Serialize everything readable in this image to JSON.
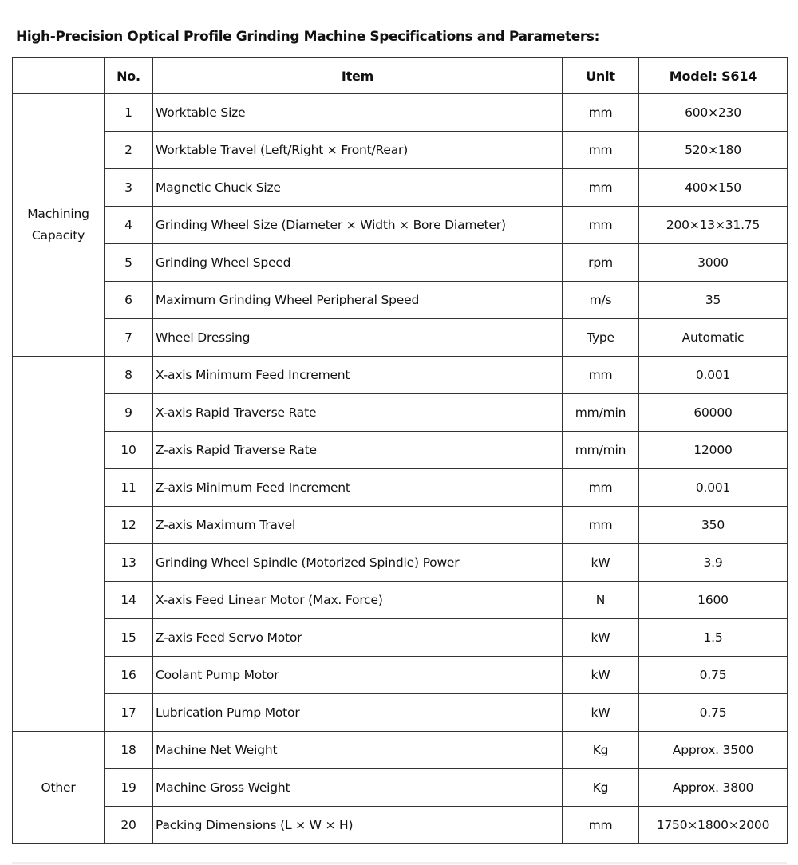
{
  "title": "High-Precision Optical Profile Grinding Machine Specifications and Parameters:",
  "headers": {
    "group": "",
    "no": "No.",
    "item": "Item",
    "unit": "Unit",
    "model": "Model: S614"
  },
  "groups": [
    {
      "label": "Machining Capacity",
      "rows": [
        {
          "no": "1",
          "item": "Worktable Size",
          "unit": "mm",
          "value": "600×230"
        },
        {
          "no": "2",
          "item": "Worktable Travel (Left/Right × Front/Rear)",
          "unit": "mm",
          "value": "520×180"
        },
        {
          "no": "3",
          "item": "Magnetic Chuck Size",
          "unit": "mm",
          "value": "400×150"
        },
        {
          "no": "4",
          "item": "Grinding Wheel Size (Diameter × Width × Bore Diameter)",
          "unit": "mm",
          "value": "200×13×31.75"
        },
        {
          "no": "5",
          "item": "Grinding Wheel Speed",
          "unit": "rpm",
          "value": "3000"
        },
        {
          "no": "6",
          "item": "Maximum Grinding Wheel Peripheral Speed",
          "unit": "m/s",
          "value": "35"
        },
        {
          "no": "7",
          "item": "Wheel Dressing",
          "unit": "Type",
          "value": "Automatic"
        }
      ]
    },
    {
      "label": "",
      "rows": [
        {
          "no": "8",
          "item": "X-axis Minimum Feed Increment",
          "unit": "mm",
          "value": "0.001"
        },
        {
          "no": "9",
          "item": "X-axis Rapid Traverse Rate",
          "unit": "mm/min",
          "value": "60000"
        },
        {
          "no": "10",
          "item": "Z-axis Rapid Traverse Rate",
          "unit": "mm/min",
          "value": "12000"
        },
        {
          "no": "11",
          "item": "Z-axis Minimum Feed Increment",
          "unit": "mm",
          "value": "0.001"
        },
        {
          "no": "12",
          "item": "Z-axis Maximum Travel",
          "unit": "mm",
          "value": "350"
        },
        {
          "no": "13",
          "item": "Grinding Wheel Spindle (Motorized Spindle) Power",
          "unit": "kW",
          "value": "3.9"
        },
        {
          "no": "14",
          "item": "X-axis Feed Linear Motor (Max. Force)",
          "unit": "N",
          "value": "1600"
        },
        {
          "no": "15",
          "item": "Z-axis Feed Servo Motor",
          "unit": "kW",
          "value": "1.5"
        },
        {
          "no": "16",
          "item": "Coolant Pump Motor",
          "unit": "kW",
          "value": "0.75"
        },
        {
          "no": "17",
          "item": "Lubrication Pump Motor",
          "unit": "kW",
          "value": "0.75"
        }
      ]
    },
    {
      "label": "Other",
      "rows": [
        {
          "no": "18",
          "item": "Machine Net Weight",
          "unit": "Kg",
          "value": "Approx. 3500"
        },
        {
          "no": "19",
          "item": "Machine Gross Weight",
          "unit": "Kg",
          "value": "Approx. 3800"
        },
        {
          "no": "20",
          "item": "Packing Dimensions (L × W × H)",
          "unit": "mm",
          "value": "1750×1800×2000"
        }
      ]
    }
  ]
}
